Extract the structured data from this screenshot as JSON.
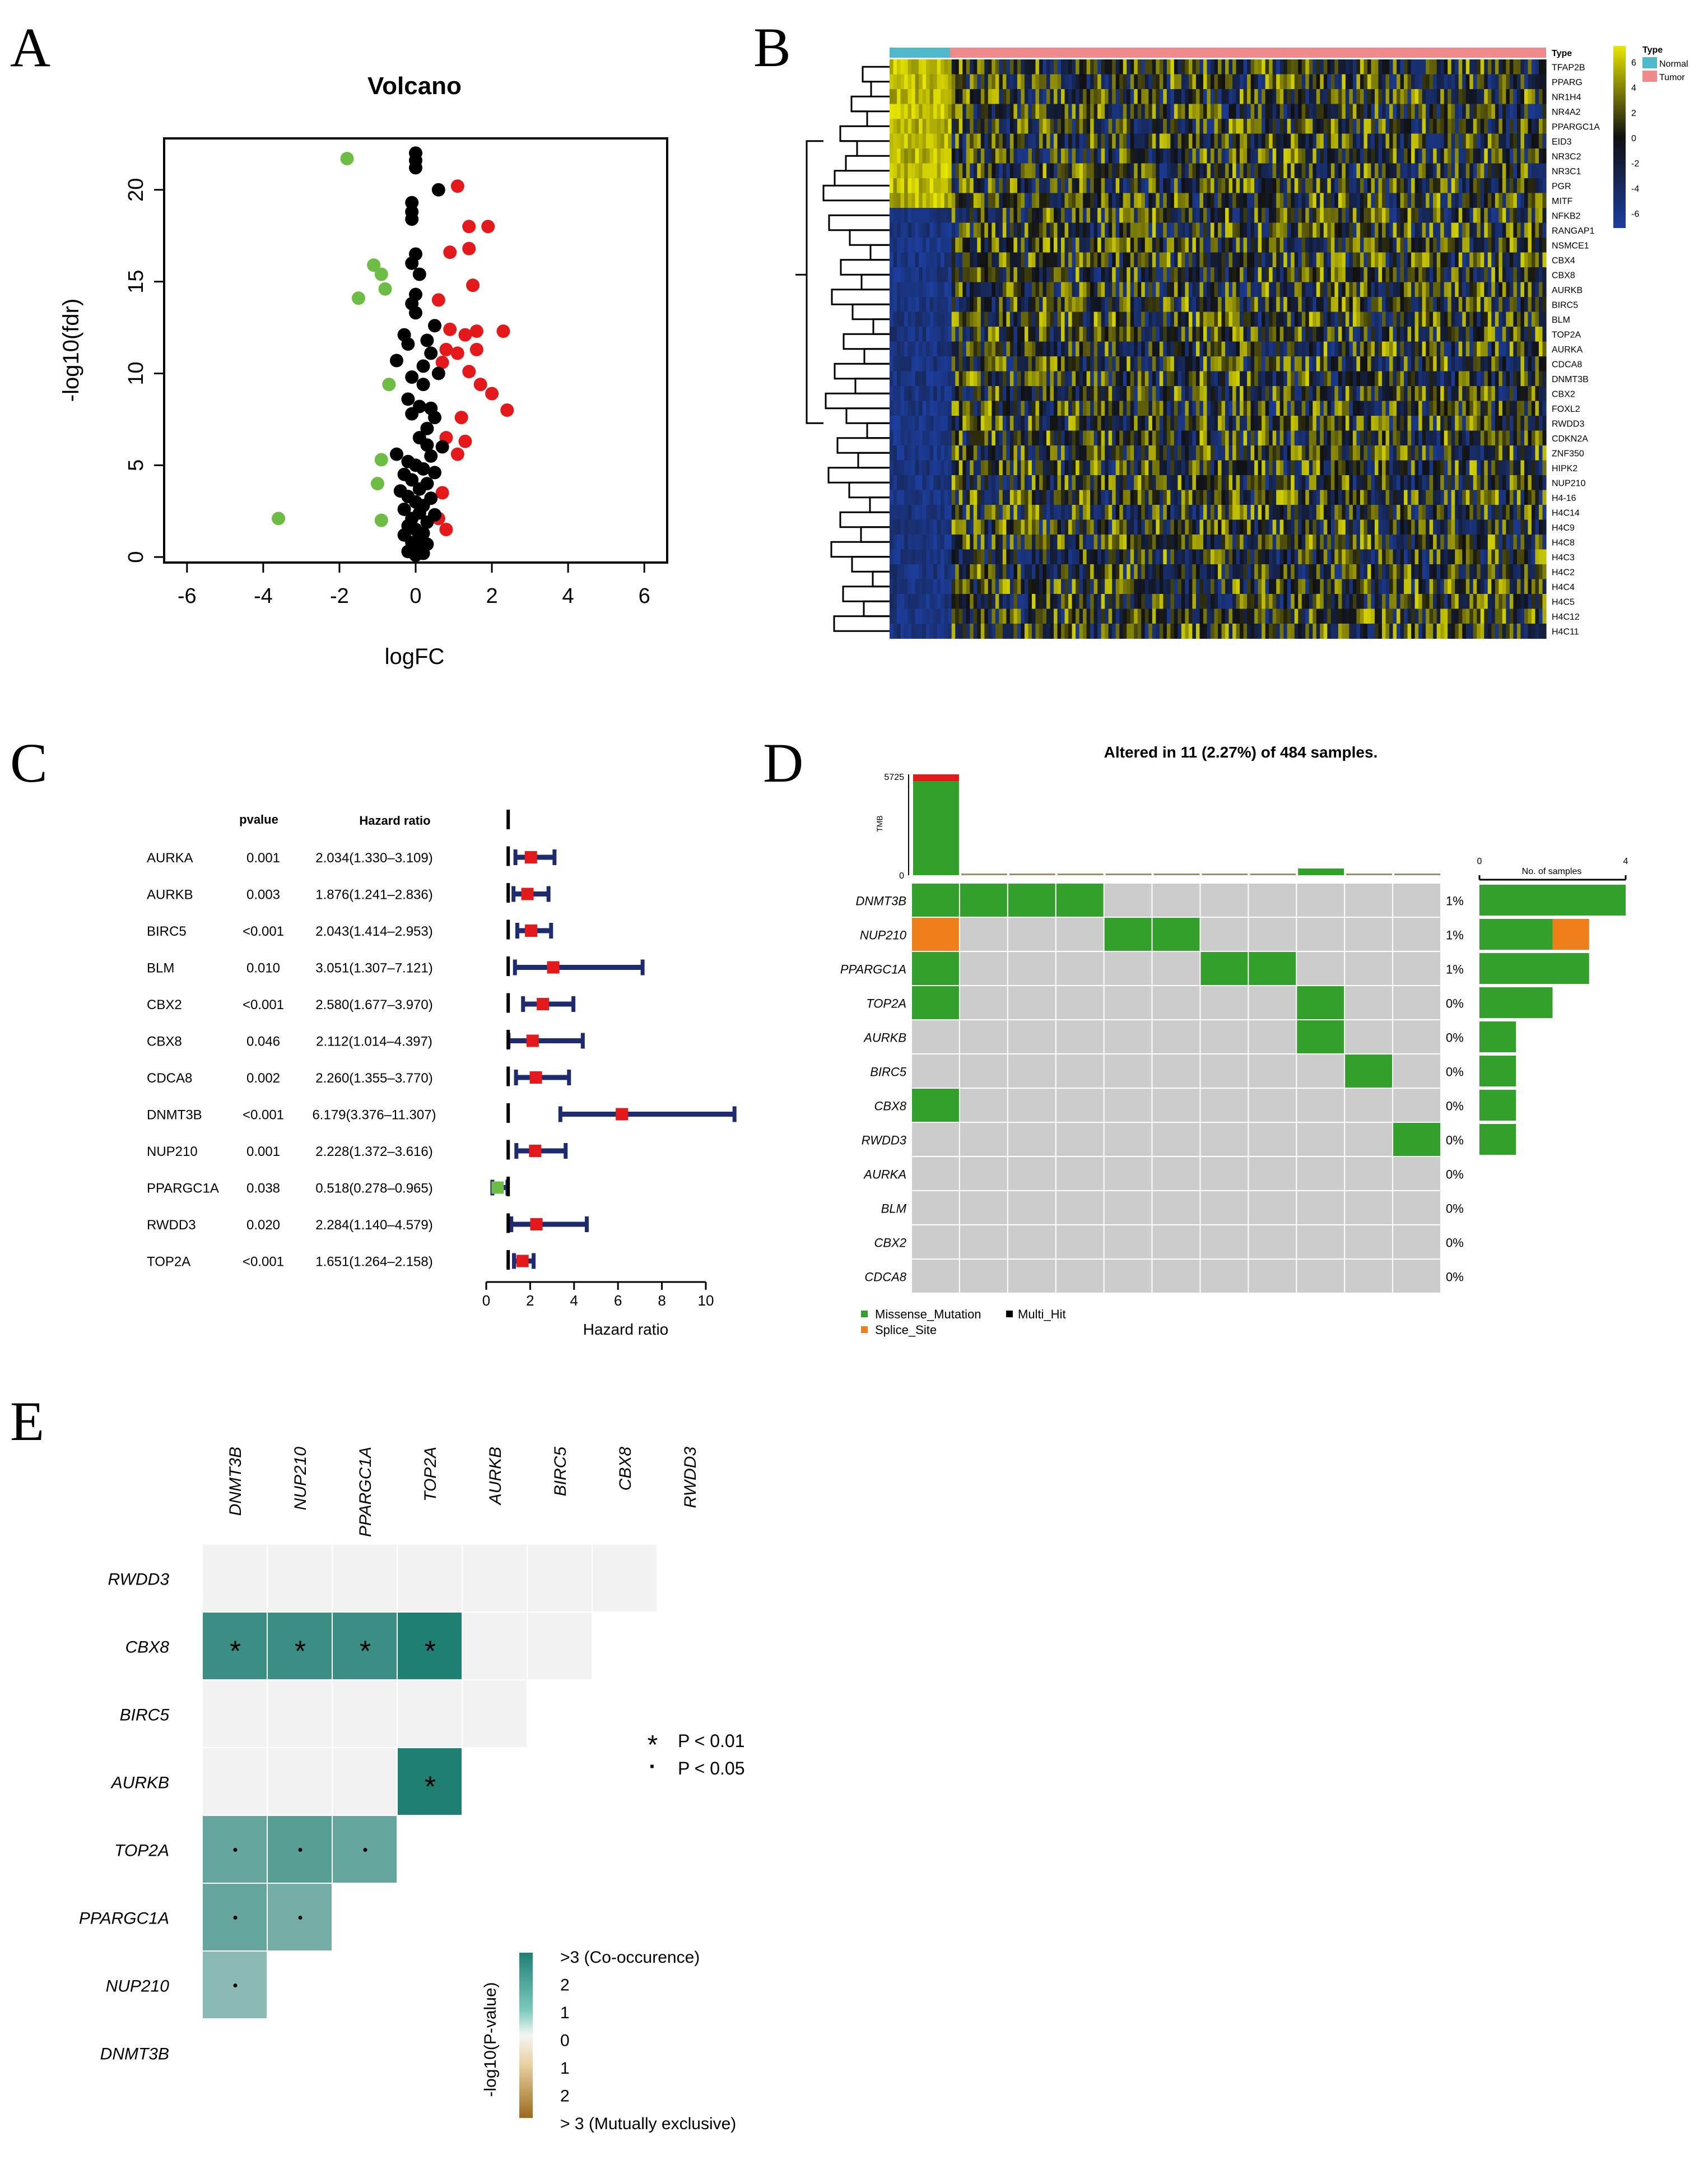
{
  "panels": {
    "A": {
      "letter": "A"
    },
    "B": {
      "letter": "B"
    },
    "C": {
      "letter": "C"
    },
    "D": {
      "letter": "D"
    },
    "E": {
      "letter": "E"
    }
  },
  "colors": {
    "up": "#e3191c",
    "down": "#6dbd45",
    "ns": "#000000",
    "heat_high": "#e8e600",
    "heat_mid": "#111111",
    "heat_low": "#1c3e9e",
    "normal": "#4fb8c9",
    "tumor": "#f08a8a",
    "missense": "#33a02c",
    "splice": "#ef7f1a",
    "multihit": "#000000",
    "grey_cell": "#cccccc",
    "forest_line": "#1e2b6e",
    "forest_box_up": "#e3191c",
    "forest_box_down": "#6dbd45",
    "cooccur_high": "#1f7f73",
    "mutex_high": "#9b6a1e"
  },
  "chart_data": [
    {
      "id": "A",
      "type": "scatter",
      "title": "Volcano",
      "xlabel": "logFC",
      "ylabel": "-log10(fdr)",
      "xlim": [
        -6.6,
        6.6
      ],
      "ylim": [
        -0.3,
        22.8
      ],
      "xticks": [
        "-6",
        "-4",
        "-2",
        "0",
        "2",
        "4",
        "6"
      ],
      "xtick_values": [
        -6,
        -4,
        -2,
        0,
        2,
        4,
        6
      ],
      "yticks": [
        "0",
        "5",
        "10",
        "15",
        "20"
      ],
      "ytick_values": [
        0,
        5,
        10,
        15,
        20
      ],
      "series": [
        {
          "key": "up",
          "points": [
            [
              1.1,
              20.2
            ],
            [
              1.4,
              18.0
            ],
            [
              1.9,
              18.0
            ],
            [
              1.4,
              16.8
            ],
            [
              0.9,
              16.6
            ],
            [
              1.5,
              14.8
            ],
            [
              0.6,
              14.0
            ],
            [
              0.9,
              12.4
            ],
            [
              1.3,
              12.1
            ],
            [
              1.6,
              12.3
            ],
            [
              2.3,
              12.3
            ],
            [
              0.8,
              11.3
            ],
            [
              1.1,
              11.1
            ],
            [
              1.6,
              11.3
            ],
            [
              0.7,
              10.6
            ],
            [
              1.4,
              10.1
            ],
            [
              1.7,
              9.4
            ],
            [
              2.0,
              8.9
            ],
            [
              2.4,
              8.0
            ],
            [
              1.2,
              7.6
            ],
            [
              0.8,
              6.5
            ],
            [
              1.3,
              6.3
            ],
            [
              1.1,
              5.6
            ],
            [
              0.7,
              3.5
            ],
            [
              0.6,
              2.1
            ],
            [
              0.8,
              1.5
            ]
          ]
        },
        {
          "key": "down",
          "points": [
            [
              -1.8,
              21.7
            ],
            [
              -1.1,
              15.9
            ],
            [
              -0.9,
              15.4
            ],
            [
              -0.8,
              14.6
            ],
            [
              -1.5,
              14.1
            ],
            [
              -0.7,
              9.4
            ],
            [
              -0.9,
              5.3
            ],
            [
              -1.0,
              4.0
            ],
            [
              -0.9,
              2.0
            ],
            [
              -3.6,
              2.1
            ]
          ]
        },
        {
          "key": "ns",
          "points": [
            [
              0.0,
              22.0
            ],
            [
              0.0,
              21.6
            ],
            [
              0.0,
              21.2
            ],
            [
              0.6,
              20.0
            ],
            [
              -0.1,
              19.3
            ],
            [
              -0.1,
              18.8
            ],
            [
              -0.1,
              18.4
            ],
            [
              0.0,
              16.5
            ],
            [
              -0.1,
              16.0
            ],
            [
              0.1,
              15.4
            ],
            [
              0.0,
              14.3
            ],
            [
              -0.1,
              13.8
            ],
            [
              0.0,
              13.3
            ],
            [
              0.5,
              12.6
            ],
            [
              -0.3,
              12.1
            ],
            [
              -0.2,
              11.6
            ],
            [
              0.3,
              11.8
            ],
            [
              0.4,
              11.1
            ],
            [
              -0.5,
              10.7
            ],
            [
              0.2,
              10.4
            ],
            [
              0.6,
              10.0
            ],
            [
              -0.1,
              9.8
            ],
            [
              0.2,
              9.4
            ],
            [
              -0.2,
              8.6
            ],
            [
              0.1,
              8.2
            ],
            [
              -0.1,
              7.8
            ],
            [
              0.4,
              8.1
            ],
            [
              0.5,
              7.6
            ],
            [
              0.3,
              7.0
            ],
            [
              0.1,
              6.5
            ],
            [
              0.3,
              6.1
            ],
            [
              0.7,
              6.0
            ],
            [
              0.4,
              5.5
            ],
            [
              -0.5,
              5.6
            ],
            [
              -0.2,
              5.2
            ],
            [
              0.0,
              5.0
            ],
            [
              0.2,
              4.8
            ],
            [
              0.5,
              4.6
            ],
            [
              -0.3,
              4.5
            ],
            [
              -0.1,
              4.2
            ],
            [
              0.3,
              4.0
            ],
            [
              0.1,
              3.7
            ],
            [
              -0.4,
              3.6
            ],
            [
              -0.2,
              3.3
            ],
            [
              0.4,
              3.2
            ],
            [
              0.0,
              3.0
            ],
            [
              0.2,
              2.8
            ],
            [
              -0.3,
              2.6
            ],
            [
              0.1,
              2.4
            ],
            [
              0.5,
              2.3
            ],
            [
              -0.1,
              2.1
            ],
            [
              0.3,
              1.9
            ],
            [
              -0.2,
              1.7
            ],
            [
              0.0,
              1.5
            ],
            [
              0.2,
              1.3
            ],
            [
              -0.3,
              1.2
            ],
            [
              0.1,
              1.0
            ],
            [
              -0.1,
              0.8
            ],
            [
              0.3,
              0.7
            ],
            [
              0.0,
              0.5
            ],
            [
              -0.2,
              0.3
            ],
            [
              0.2,
              0.2
            ],
            [
              0.0,
              0.1
            ]
          ]
        }
      ]
    },
    {
      "id": "B",
      "type": "heatmap",
      "annotation_label": "Type",
      "legend_title": "Type",
      "legend_items": [
        "Normal",
        "Tumor"
      ],
      "color_scale_ticks": [
        "6",
        "4",
        "2",
        "0",
        "-2",
        "-4",
        "-6"
      ],
      "genes": [
        "TFAP2B",
        "PPARG",
        "NR1H4",
        "NR4A2",
        "PPARGC1A",
        "EID3",
        "NR3C2",
        "NR3C1",
        "PGR",
        "MITF",
        "NFKB2",
        "RANGAP1",
        "NSMCE1",
        "CBX4",
        "CBX8",
        "AURKB",
        "BIRC5",
        "BLM",
        "TOP2A",
        "AURKA",
        "CDCA8",
        "DNMT3B",
        "CBX2",
        "FOXL2",
        "RWDD3",
        "CDKN2A",
        "ZNF350",
        "HIPK2",
        "NUP210",
        "H4-16",
        "H4C14",
        "H4C9",
        "H4C8",
        "H4C3",
        "H4C2",
        "H4C4",
        "H4C5",
        "H4C12",
        "H4C11"
      ]
    },
    {
      "id": "C",
      "type": "table",
      "pvalue_header": "pvalue",
      "hr_header": "Hazard ratio",
      "xlabel": "Hazard ratio",
      "xlim": [
        0,
        11.2
      ],
      "xticks": [
        "0",
        "2",
        "4",
        "6",
        "8",
        "10"
      ],
      "xtick_values": [
        0,
        2,
        4,
        6,
        8,
        10
      ],
      "rows": [
        {
          "gene": "AURKA",
          "p": "0.001",
          "hr_text": "2.034(1.330–3.109)",
          "hr": 2.034,
          "lo": 1.33,
          "hi": 3.109
        },
        {
          "gene": "AURKB",
          "p": "0.003",
          "hr_text": "1.876(1.241–2.836)",
          "hr": 1.876,
          "lo": 1.241,
          "hi": 2.836
        },
        {
          "gene": "BIRC5",
          "p": "<0.001",
          "hr_text": "2.043(1.414–2.953)",
          "hr": 2.043,
          "lo": 1.414,
          "hi": 2.953
        },
        {
          "gene": "BLM",
          "p": "0.010",
          "hr_text": "3.051(1.307–7.121)",
          "hr": 3.051,
          "lo": 1.307,
          "hi": 7.121
        },
        {
          "gene": "CBX2",
          "p": "<0.001",
          "hr_text": "2.580(1.677–3.970)",
          "hr": 2.58,
          "lo": 1.677,
          "hi": 3.97
        },
        {
          "gene": "CBX8",
          "p": "0.046",
          "hr_text": "2.112(1.014–4.397)",
          "hr": 2.112,
          "lo": 1.014,
          "hi": 4.397
        },
        {
          "gene": "CDCA8",
          "p": "0.002",
          "hr_text": "2.260(1.355–3.770)",
          "hr": 2.26,
          "lo": 1.355,
          "hi": 3.77
        },
        {
          "gene": "DNMT3B",
          "p": "<0.001",
          "hr_text": "6.179(3.376–11.307)",
          "hr": 6.179,
          "lo": 3.376,
          "hi": 11.307
        },
        {
          "gene": "NUP210",
          "p": "0.001",
          "hr_text": "2.228(1.372–3.616)",
          "hr": 2.228,
          "lo": 1.372,
          "hi": 3.616
        },
        {
          "gene": "PPARGC1A",
          "p": "0.038",
          "hr_text": "0.518(0.278–0.965)",
          "hr": 0.518,
          "lo": 0.278,
          "hi": 0.965
        },
        {
          "gene": "RWDD3",
          "p": "0.020",
          "hr_text": "2.284(1.140–4.579)",
          "hr": 2.284,
          "lo": 1.14,
          "hi": 4.579
        },
        {
          "gene": "TOP2A",
          "p": "<0.001",
          "hr_text": "1.651(1.264–2.158)",
          "hr": 1.651,
          "lo": 1.264,
          "hi": 2.158
        }
      ]
    },
    {
      "id": "D",
      "type": "heatmap",
      "title": "Altered in 11 (2.27%) of 484 samples.",
      "tmb_label": "TMB",
      "tmb_ticks": [
        "5725",
        "0"
      ],
      "tmb_values": [
        5725,
        60,
        40,
        40,
        50,
        50,
        80,
        40,
        200,
        40,
        40
      ],
      "samples_axis_label": "No. of samples",
      "samples_axis_ticks": [
        "0",
        "4"
      ],
      "samples_max": 4,
      "genes": [
        {
          "name": "DNMT3B",
          "pct": "1%",
          "cells": [
            "m",
            "m",
            "m",
            "m",
            "",
            "",
            "",
            "",
            "",
            "",
            ""
          ],
          "bar": {
            "m": 4,
            "s": 0
          }
        },
        {
          "name": "NUP210",
          "pct": "1%",
          "cells": [
            "s",
            "",
            "",
            "",
            "m",
            "m",
            "",
            "",
            "",
            "",
            ""
          ],
          "bar": {
            "m": 2,
            "s": 1
          }
        },
        {
          "name": "PPARGC1A",
          "pct": "1%",
          "cells": [
            "m",
            "",
            "",
            "",
            "",
            "",
            "m",
            "m",
            "",
            "",
            ""
          ],
          "bar": {
            "m": 3,
            "s": 0
          }
        },
        {
          "name": "TOP2A",
          "pct": "0%",
          "cells": [
            "m",
            "",
            "",
            "",
            "",
            "",
            "",
            "",
            "m",
            "",
            ""
          ],
          "bar": {
            "m": 2,
            "s": 0
          }
        },
        {
          "name": "AURKB",
          "pct": "0%",
          "cells": [
            "",
            "",
            "",
            "",
            "",
            "",
            "",
            "",
            "m",
            "",
            ""
          ],
          "bar": {
            "m": 1,
            "s": 0
          }
        },
        {
          "name": "BIRC5",
          "pct": "0%",
          "cells": [
            "",
            "",
            "",
            "",
            "",
            "",
            "",
            "",
            "",
            "m",
            ""
          ],
          "bar": {
            "m": 1,
            "s": 0
          }
        },
        {
          "name": "CBX8",
          "pct": "0%",
          "cells": [
            "m",
            "",
            "",
            "",
            "",
            "",
            "",
            "",
            "",
            "",
            ""
          ],
          "bar": {
            "m": 1,
            "s": 0
          }
        },
        {
          "name": "RWDD3",
          "pct": "0%",
          "cells": [
            "",
            "",
            "",
            "",
            "",
            "",
            "",
            "",
            "",
            "",
            "m"
          ],
          "bar": {
            "m": 1,
            "s": 0
          }
        },
        {
          "name": "AURKA",
          "pct": "0%",
          "cells": [
            "",
            "",
            "",
            "",
            "",
            "",
            "",
            "",
            "",
            "",
            ""
          ],
          "bar": {
            "m": 0,
            "s": 0
          }
        },
        {
          "name": "BLM",
          "pct": "0%",
          "cells": [
            "",
            "",
            "",
            "",
            "",
            "",
            "",
            "",
            "",
            "",
            ""
          ],
          "bar": {
            "m": 0,
            "s": 0
          }
        },
        {
          "name": "CBX2",
          "pct": "0%",
          "cells": [
            "",
            "",
            "",
            "",
            "",
            "",
            "",
            "",
            "",
            "",
            ""
          ],
          "bar": {
            "m": 0,
            "s": 0
          }
        },
        {
          "name": "CDCA8",
          "pct": "0%",
          "cells": [
            "",
            "",
            "",
            "",
            "",
            "",
            "",
            "",
            "",
            "",
            ""
          ],
          "bar": {
            "m": 0,
            "s": 0
          }
        }
      ],
      "legend": [
        "Missense_Mutation",
        "Multi_Hit",
        "Splice_Site"
      ]
    },
    {
      "id": "E",
      "type": "heatmap",
      "col_genes": [
        "DNMT3B",
        "NUP210",
        "PPARGC1A",
        "TOP2A",
        "AURKB",
        "BIRC5",
        "CBX8",
        "RWDD3"
      ],
      "row_genes": [
        "RWDD3",
        "CBX8",
        "BIRC5",
        "AURKB",
        "TOP2A",
        "PPARGC1A",
        "NUP210",
        "DNMT3B"
      ],
      "cells": [
        {
          "row": "CBX8",
          "col": "DNMT3B",
          "v": 2.6,
          "mark": "*"
        },
        {
          "row": "CBX8",
          "col": "NUP210",
          "v": 2.6,
          "mark": "*"
        },
        {
          "row": "CBX8",
          "col": "PPARGC1A",
          "v": 2.6,
          "mark": "*"
        },
        {
          "row": "CBX8",
          "col": "TOP2A",
          "v": 3.0,
          "mark": "*"
        },
        {
          "row": "AURKB",
          "col": "TOP2A",
          "v": 3.0,
          "mark": "*"
        },
        {
          "row": "TOP2A",
          "col": "DNMT3B",
          "v": 2.0,
          "mark": "."
        },
        {
          "row": "TOP2A",
          "col": "NUP210",
          "v": 2.2,
          "mark": "."
        },
        {
          "row": "TOP2A",
          "col": "PPARGC1A",
          "v": 2.0,
          "mark": "."
        },
        {
          "row": "PPARGC1A",
          "col": "DNMT3B",
          "v": 2.0,
          "mark": "."
        },
        {
          "row": "PPARGC1A",
          "col": "NUP210",
          "v": 1.8,
          "mark": "."
        },
        {
          "row": "NUP210",
          "col": "DNMT3B",
          "v": 1.5,
          "mark": "."
        }
      ],
      "sig_legend": [
        {
          "symbol": "*",
          "label": "P < 0.01"
        },
        {
          "symbol": "·",
          "label": "P < 0.05"
        }
      ],
      "colorbar_title": "-log10(P-value)",
      "colorbar_ticks": [
        ">3 (Co-occurence)",
        "2",
        "1",
        "0",
        "1",
        "2",
        "> 3 (Mutually exclusive)"
      ]
    }
  ]
}
